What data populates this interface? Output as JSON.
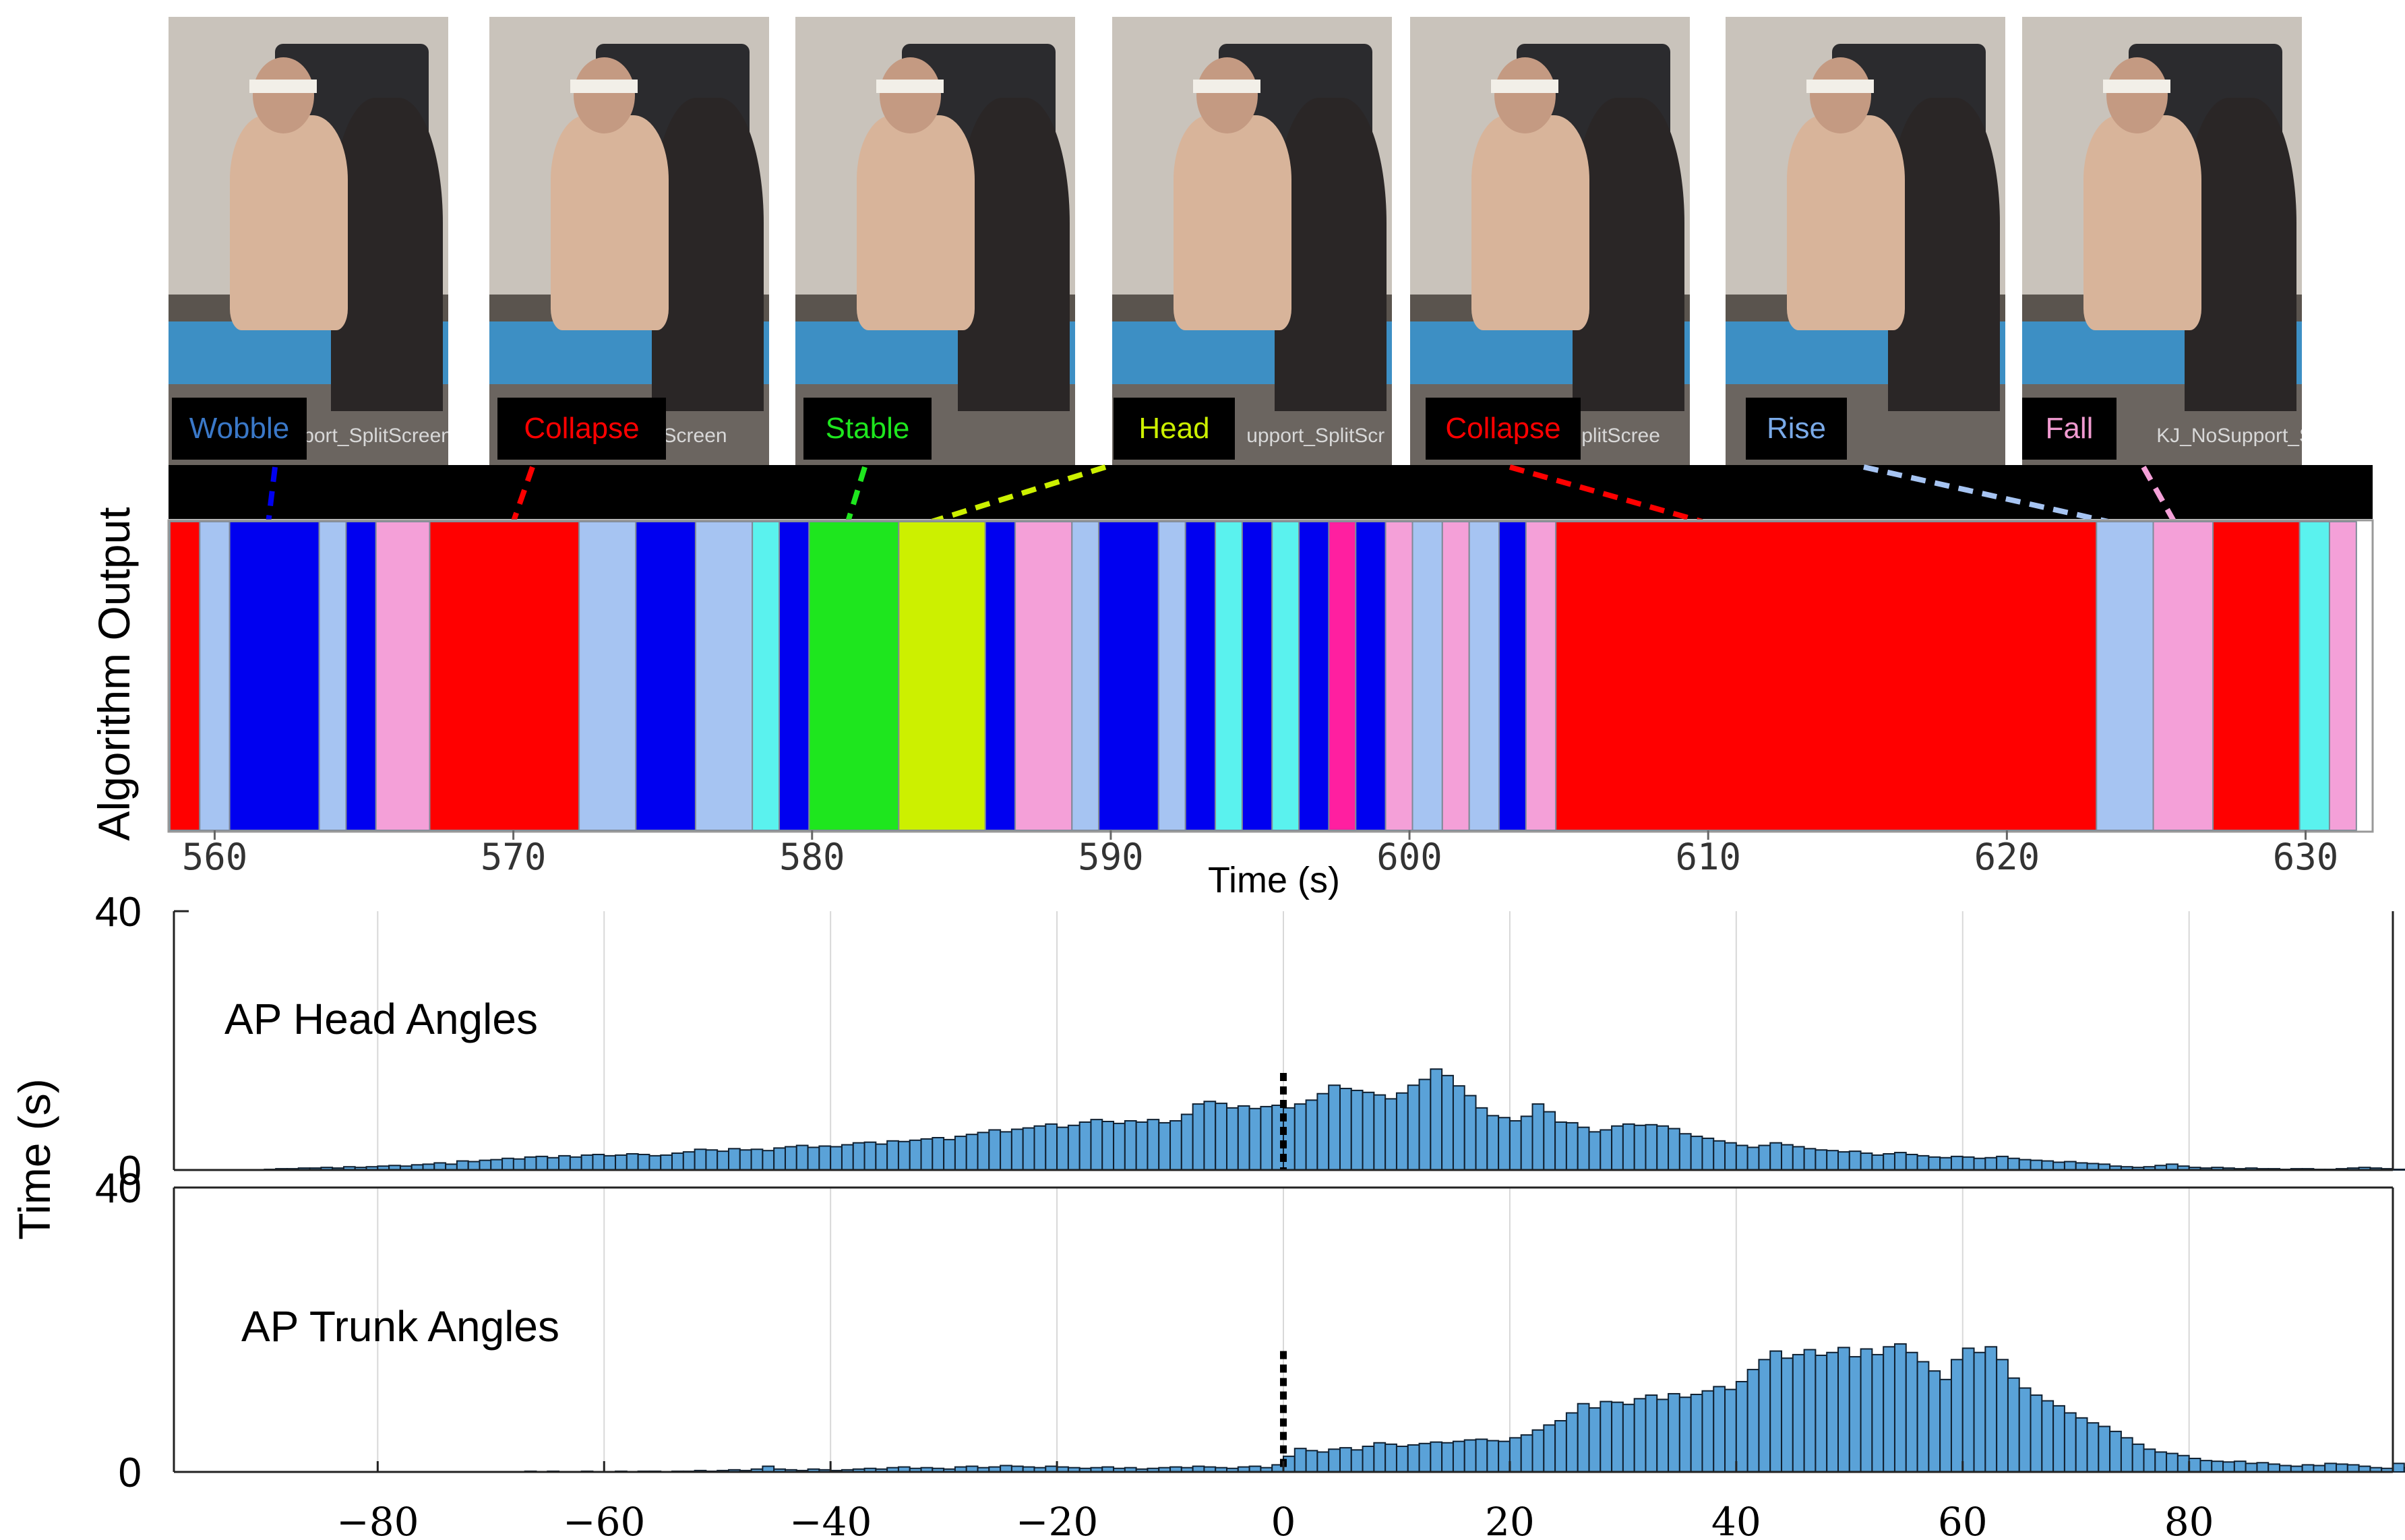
{
  "colors": {
    "wobble": "#0000f0",
    "wobble_text": "#3a78c8",
    "rise": "#a6c4f2",
    "rise_text": "#7aaae8",
    "collapse": "#ff0000",
    "stable": "#1ee61e",
    "head": "#ccf000",
    "fall": "#f4a0d8",
    "fall_text": "#f09ad0",
    "cyan": "#5af2ee",
    "magenta": "#ff1fa0",
    "hist_fill": "#5aa2d8",
    "hist_edge": "#102030"
  },
  "frames": [
    {
      "label": "Wobble",
      "icon": "video-frame-image",
      "caption": "port_SplitScreen"
    },
    {
      "label": "Collapse",
      "icon": "video-frame-image",
      "caption": "SplitScreen"
    },
    {
      "label": "Stable",
      "icon": "video-frame-image",
      "caption": ""
    },
    {
      "label": "Head",
      "icon": "video-frame-image",
      "caption": "upport_SplitScr"
    },
    {
      "label": "Collapse",
      "icon": "video-frame-image",
      "caption": "rt_SplitScree"
    },
    {
      "label": "Rise",
      "icon": "video-frame-image",
      "caption": ""
    },
    {
      "label": "Fall",
      "icon": "video-frame-image",
      "caption": "KJ_NoSupport_SplitScre"
    }
  ],
  "chart_data": [
    {
      "type": "bar",
      "subtype": "timeline",
      "ylabel": "Algorithm Output",
      "xlabel": "Time (s)",
      "xlim": [
        558.5,
        632.2
      ],
      "xticks": [
        560,
        570,
        580,
        590,
        600,
        610,
        620,
        630
      ],
      "segments": [
        {
          "start": 558.5,
          "end": 559.5,
          "state": "collapse"
        },
        {
          "start": 559.5,
          "end": 560.5,
          "state": "rise"
        },
        {
          "start": 560.5,
          "end": 563.5,
          "state": "wobble"
        },
        {
          "start": 563.5,
          "end": 564.4,
          "state": "rise"
        },
        {
          "start": 564.4,
          "end": 565.4,
          "state": "wobble"
        },
        {
          "start": 565.4,
          "end": 567.2,
          "state": "fall"
        },
        {
          "start": 567.2,
          "end": 572.2,
          "state": "collapse"
        },
        {
          "start": 572.2,
          "end": 574.1,
          "state": "rise"
        },
        {
          "start": 574.1,
          "end": 576.1,
          "state": "wobble"
        },
        {
          "start": 576.1,
          "end": 578.0,
          "state": "rise"
        },
        {
          "start": 578.0,
          "end": 578.9,
          "state": "cyan"
        },
        {
          "start": 578.9,
          "end": 579.9,
          "state": "wobble"
        },
        {
          "start": 579.9,
          "end": 582.9,
          "state": "stable"
        },
        {
          "start": 582.9,
          "end": 585.8,
          "state": "head"
        },
        {
          "start": 585.8,
          "end": 586.8,
          "state": "wobble"
        },
        {
          "start": 586.8,
          "end": 588.7,
          "state": "fall"
        },
        {
          "start": 588.7,
          "end": 589.6,
          "state": "rise"
        },
        {
          "start": 589.6,
          "end": 591.6,
          "state": "wobble"
        },
        {
          "start": 591.6,
          "end": 592.5,
          "state": "rise"
        },
        {
          "start": 592.5,
          "end": 593.5,
          "state": "wobble"
        },
        {
          "start": 593.5,
          "end": 594.4,
          "state": "cyan"
        },
        {
          "start": 594.4,
          "end": 595.4,
          "state": "wobble"
        },
        {
          "start": 595.4,
          "end": 596.3,
          "state": "cyan"
        },
        {
          "start": 596.3,
          "end": 597.3,
          "state": "wobble"
        },
        {
          "start": 597.3,
          "end": 598.2,
          "state": "magenta"
        },
        {
          "start": 598.2,
          "end": 599.2,
          "state": "wobble"
        },
        {
          "start": 599.2,
          "end": 600.1,
          "state": "fall"
        },
        {
          "start": 600.1,
          "end": 601.1,
          "state": "rise"
        },
        {
          "start": 601.1,
          "end": 602.0,
          "state": "fall"
        },
        {
          "start": 602.0,
          "end": 603.0,
          "state": "rise"
        },
        {
          "start": 603.0,
          "end": 603.9,
          "state": "wobble"
        },
        {
          "start": 603.9,
          "end": 604.9,
          "state": "fall"
        },
        {
          "start": 604.9,
          "end": 623.0,
          "state": "collapse"
        },
        {
          "start": 623.0,
          "end": 624.9,
          "state": "rise"
        },
        {
          "start": 624.9,
          "end": 626.9,
          "state": "fall"
        },
        {
          "start": 626.9,
          "end": 629.8,
          "state": "collapse"
        },
        {
          "start": 629.8,
          "end": 630.8,
          "state": "cyan"
        },
        {
          "start": 630.8,
          "end": 631.7,
          "state": "fall"
        }
      ],
      "frame_links": [
        {
          "frame": 0,
          "time": 561.8,
          "state": "wobble"
        },
        {
          "frame": 1,
          "time": 570.0,
          "state": "collapse"
        },
        {
          "frame": 2,
          "time": 581.2,
          "state": "stable"
        },
        {
          "frame": 3,
          "time": 584.0,
          "state": "head"
        },
        {
          "frame": 4,
          "time": 609.8,
          "state": "collapse"
        },
        {
          "frame": 5,
          "time": 623.4,
          "state": "rise"
        },
        {
          "frame": 6,
          "time": 625.6,
          "state": "fall"
        }
      ]
    },
    {
      "type": "bar",
      "subtype": "histogram",
      "title": "AP Head Angles",
      "ylabel": "Time (s)",
      "xlim": [
        -98,
        98
      ],
      "ylim": [
        0,
        40
      ],
      "yticks": [
        0,
        40
      ],
      "xticks": [
        -80,
        -60,
        -40,
        -20,
        0,
        20,
        40,
        60,
        80
      ],
      "grid": true,
      "bin_start": -90,
      "bin_width": 1,
      "values": [
        0.1,
        0.2,
        0.2,
        0.3,
        0.3,
        0.4,
        0.3,
        0.5,
        0.4,
        0.5,
        0.6,
        0.7,
        0.6,
        0.8,
        0.9,
        1.1,
        0.9,
        1.4,
        1.3,
        1.5,
        1.6,
        1.8,
        1.7,
        2.0,
        2.1,
        1.9,
        2.2,
        2.0,
        2.3,
        2.4,
        2.2,
        2.3,
        2.5,
        2.4,
        2.2,
        2.3,
        2.6,
        2.8,
        3.2,
        3.1,
        2.9,
        3.3,
        3.1,
        3.2,
        3.0,
        3.4,
        3.6,
        3.8,
        3.5,
        3.7,
        3.6,
        3.9,
        4.2,
        4.3,
        4.0,
        4.5,
        4.4,
        4.6,
        4.8,
        5.0,
        4.7,
        5.2,
        5.5,
        5.8,
        6.2,
        5.9,
        6.3,
        6.5,
        6.8,
        7.1,
        6.6,
        6.9,
        7.4,
        7.8,
        7.5,
        7.2,
        7.6,
        7.4,
        7.8,
        7.3,
        7.6,
        8.6,
        10.2,
        10.6,
        10.3,
        9.6,
        9.9,
        9.5,
        9.8,
        10.0,
        9.6,
        10.2,
        10.8,
        11.8,
        13.1,
        12.6,
        12.3,
        12.0,
        11.6,
        11.0,
        11.9,
        13.1,
        14.0,
        15.6,
        14.6,
        13.0,
        11.5,
        9.6,
        8.4,
        8.1,
        7.6,
        8.3,
        10.2,
        9.0,
        7.4,
        7.3,
        6.6,
        5.9,
        6.2,
        6.8,
        7.1,
        6.9,
        7.0,
        6.8,
        6.4,
        5.6,
        5.2,
        4.9,
        4.5,
        4.2,
        3.8,
        3.5,
        3.8,
        4.2,
        3.9,
        3.6,
        3.3,
        3.1,
        3.0,
        2.8,
        2.9,
        2.6,
        2.3,
        2.5,
        2.7,
        2.4,
        2.2,
        2.0,
        1.9,
        2.1,
        2.0,
        1.8,
        1.9,
        2.1,
        1.8,
        1.6,
        1.5,
        1.4,
        1.2,
        1.3,
        1.1,
        1.0,
        0.9,
        0.6,
        0.5,
        0.4,
        0.5,
        0.7,
        0.9,
        0.6,
        0.4,
        0.3,
        0.4,
        0.3,
        0.2,
        0.3,
        0.2,
        0.2,
        0.1,
        0.2,
        0.2,
        0.1,
        0.1,
        0.2,
        0.3,
        0.4,
        0.3,
        0.2,
        0.1,
        0.1,
        0.1
      ],
      "marker": {
        "x": 0,
        "y": 15
      }
    },
    {
      "type": "bar",
      "subtype": "histogram",
      "title": "AP Trunk Angles",
      "ylabel": "Time (s)",
      "xlim": [
        -98,
        98
      ],
      "ylim": [
        0,
        40
      ],
      "yticks": [
        0,
        40
      ],
      "xticks": [
        -80,
        -60,
        -40,
        -20,
        0,
        20,
        40,
        60,
        80
      ],
      "xticklabels": [
        "−80",
        "−60",
        "−40",
        "−20",
        "0",
        "20",
        "40",
        "60",
        "80"
      ],
      "grid": true,
      "bin_start": -90,
      "bin_width": 1,
      "values": [
        0.0,
        0.0,
        0.0,
        0.0,
        0.0,
        0.0,
        0.0,
        0.0,
        0.0,
        0.0,
        0.0,
        0.0,
        0.0,
        0.0,
        0.0,
        0.0,
        0.0,
        0.0,
        0.0,
        0.0,
        0.0,
        0.0,
        0.0,
        0.1,
        0.0,
        0.1,
        0.0,
        0.0,
        0.1,
        0.0,
        0.0,
        0.1,
        0.0,
        0.1,
        0.1,
        0.0,
        0.1,
        0.1,
        0.2,
        0.1,
        0.2,
        0.3,
        0.2,
        0.4,
        0.8,
        0.4,
        0.3,
        0.2,
        0.4,
        0.3,
        0.2,
        0.3,
        0.4,
        0.5,
        0.4,
        0.6,
        0.7,
        0.5,
        0.6,
        0.5,
        0.4,
        0.7,
        0.8,
        0.6,
        0.7,
        0.9,
        0.8,
        0.7,
        0.6,
        0.8,
        0.7,
        0.6,
        0.5,
        0.6,
        0.7,
        0.5,
        0.6,
        0.4,
        0.5,
        0.6,
        0.7,
        0.6,
        0.8,
        0.7,
        0.6,
        0.5,
        0.7,
        0.8,
        0.6,
        1.0,
        2.2,
        3.3,
        3.0,
        2.8,
        3.2,
        3.4,
        3.1,
        3.6,
        4.1,
        3.9,
        3.6,
        3.8,
        4.0,
        4.2,
        4.1,
        4.3,
        4.5,
        4.6,
        4.4,
        4.3,
        4.8,
        5.2,
        5.9,
        6.6,
        7.2,
        8.3,
        9.6,
        9.0,
        9.9,
        9.8,
        9.5,
        10.3,
        10.8,
        10.2,
        11.0,
        10.5,
        10.9,
        11.4,
        12.0,
        11.6,
        12.7,
        14.4,
        15.8,
        17.0,
        16.0,
        16.5,
        17.2,
        16.4,
        16.8,
        17.5,
        16.2,
        17.3,
        16.5,
        17.6,
        18.0,
        16.8,
        15.5,
        14.2,
        13.0,
        15.8,
        17.4,
        16.8,
        17.6,
        15.8,
        13.2,
        11.8,
        10.8,
        10.0,
        9.3,
        8.3,
        7.6,
        6.9,
        6.4,
        5.7,
        4.8,
        3.9,
        3.2,
        2.8,
        2.6,
        2.3,
        1.9,
        1.6,
        1.5,
        1.4,
        1.5,
        1.2,
        1.3,
        1.1,
        0.9,
        0.8,
        1.0,
        0.9,
        1.2,
        1.1,
        1.0,
        0.8,
        0.6,
        0.5,
        1.2,
        0.6,
        0.3,
        0.2,
        0.1,
        0.1
      ],
      "marker": {
        "x": 0,
        "y": 17
      }
    }
  ]
}
